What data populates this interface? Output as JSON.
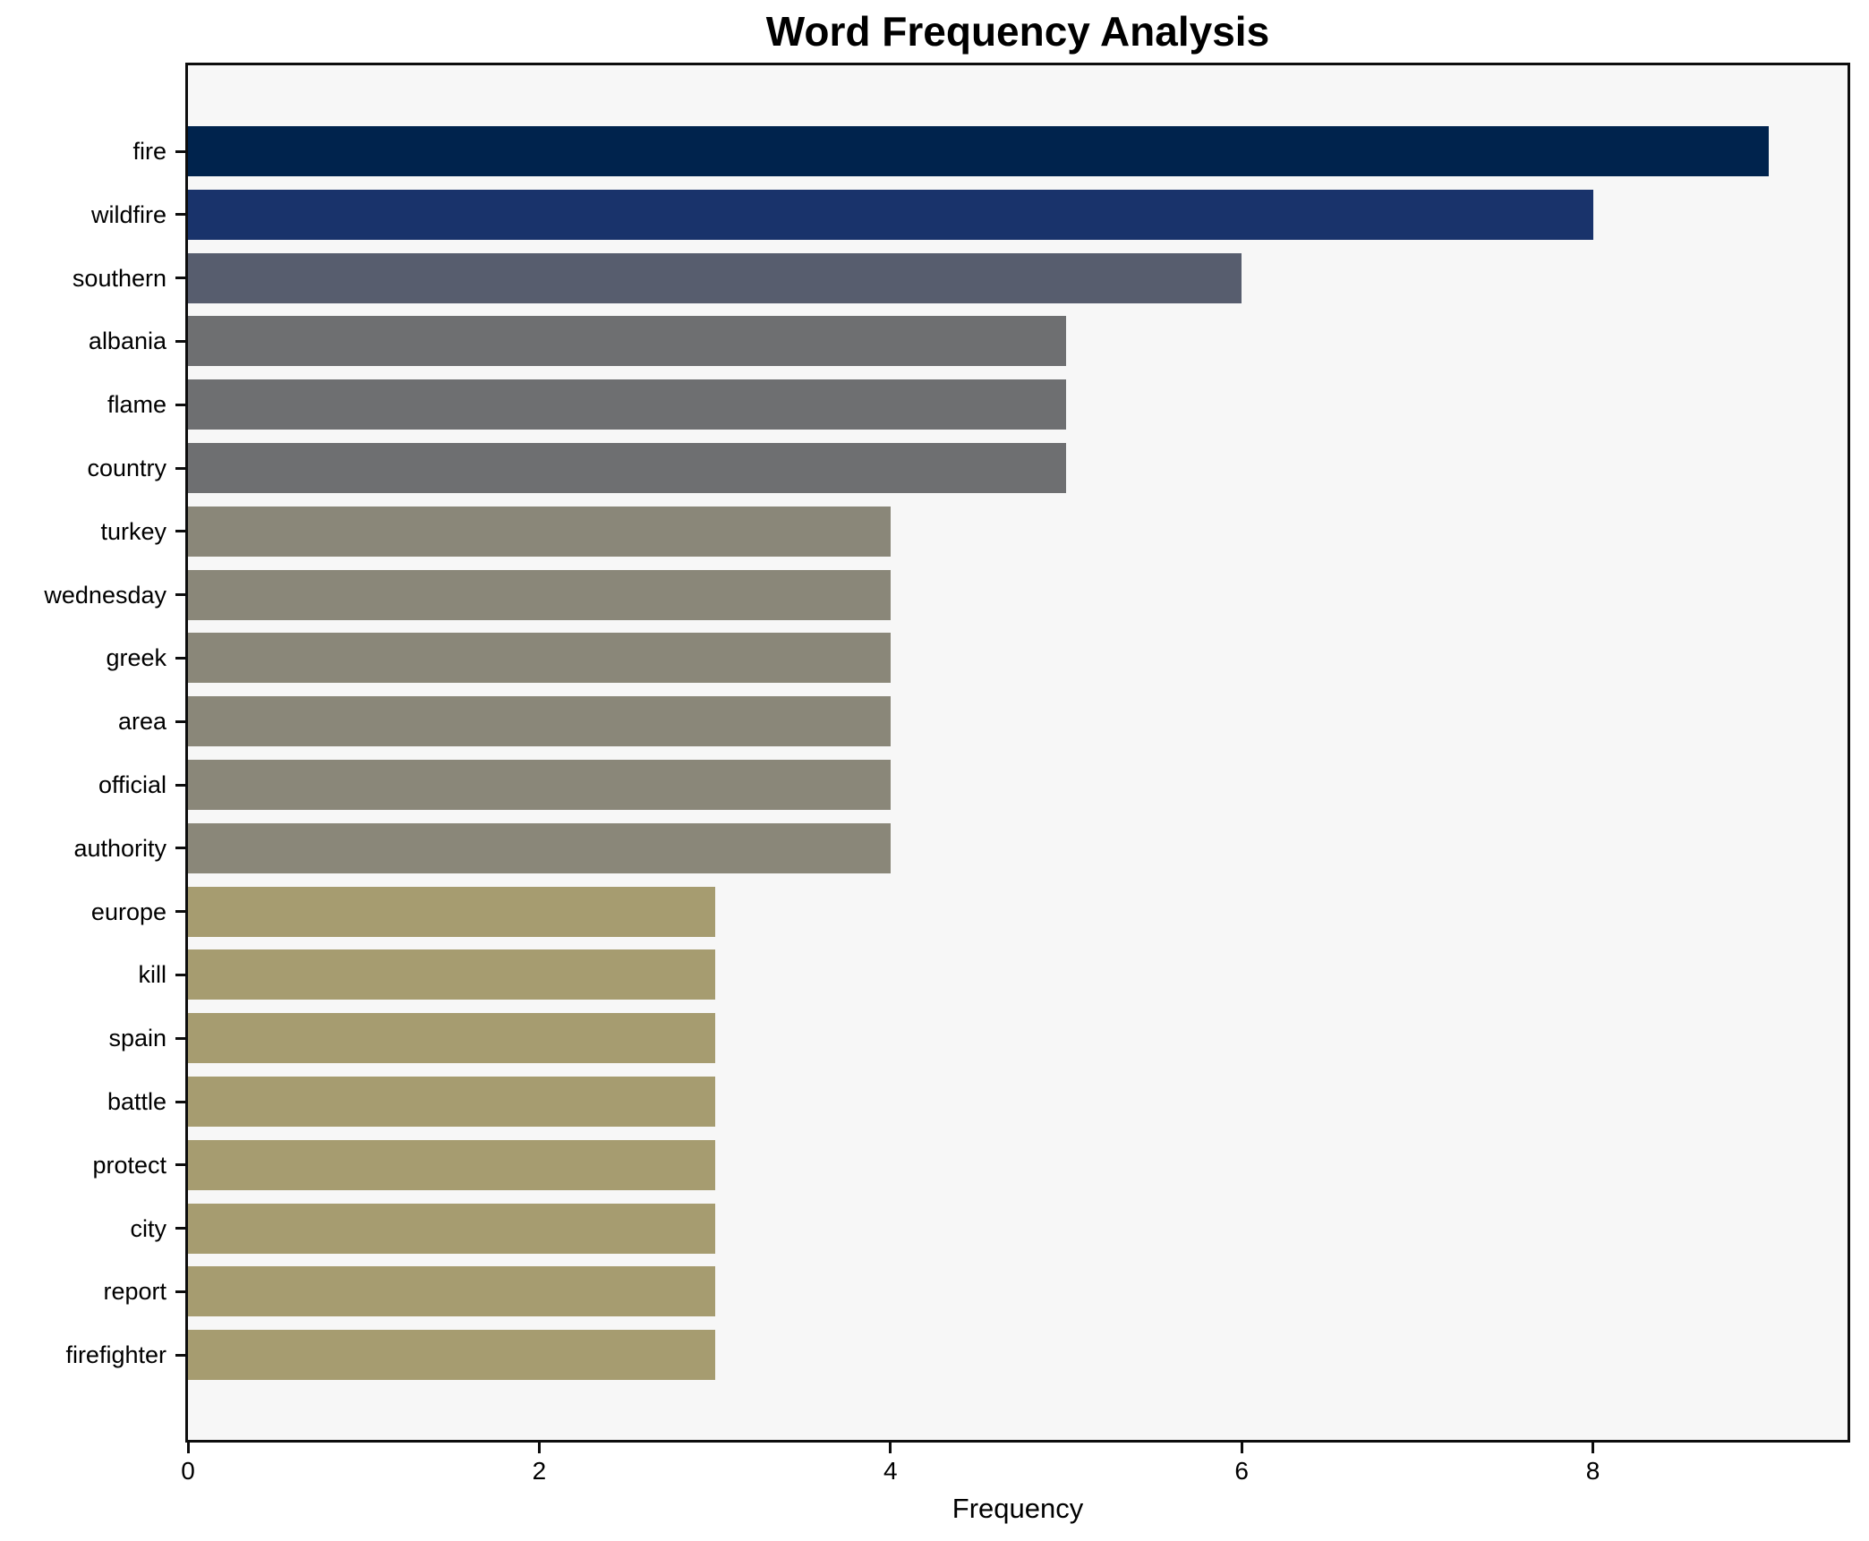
{
  "chart_data": {
    "type": "bar",
    "orientation": "horizontal",
    "title": "Word Frequency Analysis",
    "xlabel": "Frequency",
    "ylabel": "",
    "categories": [
      "fire",
      "wildfire",
      "southern",
      "albania",
      "flame",
      "country",
      "turkey",
      "wednesday",
      "greek",
      "area",
      "official",
      "authority",
      "europe",
      "kill",
      "spain",
      "battle",
      "protect",
      "city",
      "report",
      "firefighter"
    ],
    "values": [
      9,
      8,
      6,
      5,
      5,
      5,
      4,
      4,
      4,
      4,
      4,
      4,
      3,
      3,
      3,
      3,
      3,
      3,
      3,
      3
    ],
    "bar_colors": [
      "#00234d",
      "#19336b",
      "#575d6e",
      "#6e6f71",
      "#6e6f71",
      "#6e6f71",
      "#8a8779",
      "#8a8779",
      "#8a8779",
      "#8a8779",
      "#8a8779",
      "#8a8779",
      "#a69c70",
      "#a69c70",
      "#a69c70",
      "#a69c70",
      "#a69c70",
      "#a69c70",
      "#a69c70",
      "#a69c70"
    ],
    "xlim": [
      0,
      9.45
    ],
    "xticks": [
      0,
      2,
      4,
      6,
      8
    ],
    "grid": false,
    "legend": null,
    "plot_background": "#f7f7f7",
    "spine_color": "#0d0d0d"
  }
}
